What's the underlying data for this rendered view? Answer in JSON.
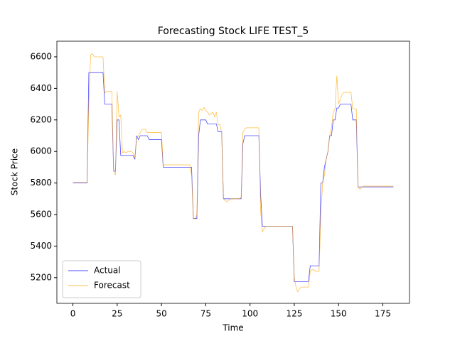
{
  "chart_data": {
    "type": "line",
    "title": "Forecasting Stock LIFE TEST_5",
    "x_label": "Time",
    "y_label": "Stock Price",
    "x": [
      0,
      1,
      2,
      3,
      4,
      5,
      6,
      7,
      8,
      9,
      10,
      11,
      12,
      13,
      14,
      15,
      16,
      17,
      18,
      19,
      20,
      21,
      22,
      23,
      24,
      25,
      26,
      27,
      28,
      29,
      30,
      31,
      32,
      33,
      34,
      35,
      36,
      37,
      38,
      39,
      40,
      41,
      42,
      43,
      44,
      45,
      46,
      47,
      48,
      49,
      50,
      51,
      52,
      53,
      54,
      55,
      56,
      57,
      58,
      59,
      60,
      61,
      62,
      63,
      64,
      65,
      66,
      67,
      68,
      69,
      70,
      71,
      72,
      73,
      74,
      75,
      76,
      77,
      78,
      79,
      80,
      81,
      82,
      83,
      84,
      85,
      86,
      87,
      88,
      89,
      90,
      91,
      92,
      93,
      94,
      95,
      96,
      97,
      98,
      99,
      100,
      101,
      102,
      103,
      104,
      105,
      106,
      107,
      108,
      109,
      110,
      111,
      112,
      113,
      114,
      115,
      116,
      117,
      118,
      119,
      120,
      121,
      122,
      123,
      124,
      125,
      126,
      127,
      128,
      129,
      130,
      131,
      132,
      133,
      134,
      135,
      136,
      137,
      138,
      139,
      140,
      141,
      142,
      143,
      144,
      145,
      146,
      147,
      148,
      149,
      150,
      151,
      152,
      153,
      154,
      155,
      156,
      157,
      158,
      159,
      160,
      161,
      162,
      163,
      164,
      165,
      166,
      167,
      168,
      169,
      170,
      171,
      172,
      173,
      174,
      175,
      176,
      177,
      178,
      179,
      180,
      181
    ],
    "series": [
      {
        "name": "Actual",
        "color": "#0000ff",
        "values": [
          5800,
          5800,
          5800,
          5800,
          5800,
          5800,
          5800,
          5800,
          5800,
          6500,
          6500,
          6500,
          6500,
          6500,
          6500,
          6500,
          6500,
          6500,
          6300,
          6300,
          6300,
          6300,
          6300,
          5875,
          5875,
          6200,
          6200,
          5975,
          5975,
          5975,
          5975,
          5975,
          5975,
          5975,
          5975,
          5950,
          6100,
          6075,
          6100,
          6100,
          6100,
          6100,
          6100,
          6075,
          6075,
          6075,
          6075,
          6075,
          6075,
          6075,
          6075,
          5900,
          5900,
          5900,
          5900,
          5900,
          5900,
          5900,
          5900,
          5900,
          5900,
          5900,
          5900,
          5900,
          5900,
          5900,
          5900,
          5900,
          5575,
          5575,
          5575,
          6100,
          6200,
          6200,
          6200,
          6200,
          6175,
          6175,
          6175,
          6175,
          6175,
          6175,
          6125,
          6125,
          6125,
          5700,
          5700,
          5700,
          5700,
          5700,
          5700,
          5700,
          5700,
          5700,
          5700,
          5700,
          6050,
          6100,
          6100,
          6100,
          6100,
          6100,
          6100,
          6100,
          6100,
          6100,
          5725,
          5525,
          5525,
          5525,
          5525,
          5525,
          5525,
          5525,
          5525,
          5525,
          5525,
          5525,
          5525,
          5525,
          5525,
          5525,
          5525,
          5525,
          5525,
          5175,
          5175,
          5175,
          5175,
          5175,
          5175,
          5175,
          5175,
          5175,
          5275,
          5275,
          5275,
          5275,
          5275,
          5275,
          5800,
          5800,
          5900,
          5950,
          6000,
          6100,
          6100,
          6200,
          6200,
          6275,
          6275,
          6300,
          6300,
          6300,
          6300,
          6300,
          6300,
          6300,
          6200,
          6200,
          6200,
          5775,
          5775,
          5775,
          5775,
          5775,
          5775,
          5775,
          5775,
          5775,
          5775,
          5775,
          5775,
          5775,
          5775,
          5775,
          5775,
          5775,
          5775,
          5775,
          5775,
          5775
        ]
      },
      {
        "name": "Forecast",
        "color": "#ffa500",
        "values": [
          5805,
          5805,
          5805,
          5805,
          5805,
          5805,
          5805,
          5805,
          5805,
          6300,
          6610,
          6620,
          6600,
          6600,
          6600,
          6600,
          6600,
          6600,
          6370,
          6380,
          6380,
          6380,
          6380,
          5880,
          5850,
          6380,
          6220,
          6230,
          5990,
          6000,
          5990,
          6000,
          6000,
          6000,
          5990,
          5960,
          6080,
          6100,
          6120,
          6140,
          6140,
          6140,
          6120,
          6120,
          6120,
          6120,
          6120,
          6120,
          6120,
          6120,
          6120,
          5915,
          5915,
          5915,
          5915,
          5915,
          5915,
          5915,
          5915,
          5915,
          5915,
          5915,
          5915,
          5915,
          5915,
          5915,
          5915,
          5850,
          5580,
          5570,
          5600,
          6250,
          6270,
          6260,
          6280,
          6260,
          6250,
          6230,
          6240,
          6250,
          6220,
          6250,
          6170,
          6170,
          6120,
          5700,
          5690,
          5680,
          5690,
          5700,
          5700,
          5700,
          5700,
          5700,
          5700,
          5710,
          6120,
          6140,
          6150,
          6150,
          6150,
          6150,
          6150,
          6150,
          6150,
          6150,
          5620,
          5490,
          5510,
          5525,
          5525,
          5525,
          5525,
          5525,
          5525,
          5525,
          5525,
          5525,
          5525,
          5525,
          5525,
          5525,
          5525,
          5525,
          5525,
          5200,
          5140,
          5110,
          5130,
          5140,
          5140,
          5140,
          5140,
          5140,
          5240,
          5250,
          5250,
          5240,
          5240,
          5240,
          5600,
          5800,
          5850,
          5950,
          6000,
          6100,
          6150,
          6250,
          6270,
          6480,
          6300,
          6330,
          6360,
          6375,
          6375,
          6375,
          6375,
          6375,
          6270,
          6270,
          6270,
          5780,
          5760,
          5770,
          5780,
          5780,
          5780,
          5780,
          5780,
          5780,
          5780,
          5780,
          5780,
          5780,
          5780,
          5780,
          5780,
          5780,
          5780,
          5780,
          5780,
          5780
        ]
      }
    ],
    "xlim": [
      -9.05,
      190.05
    ],
    "ylim": [
      5037,
      6699
    ],
    "xticks": [
      0,
      25,
      50,
      75,
      100,
      125,
      150,
      175
    ],
    "yticks": [
      5200,
      5400,
      5600,
      5800,
      6000,
      6200,
      6400,
      6600
    ],
    "legend": "lower left"
  }
}
